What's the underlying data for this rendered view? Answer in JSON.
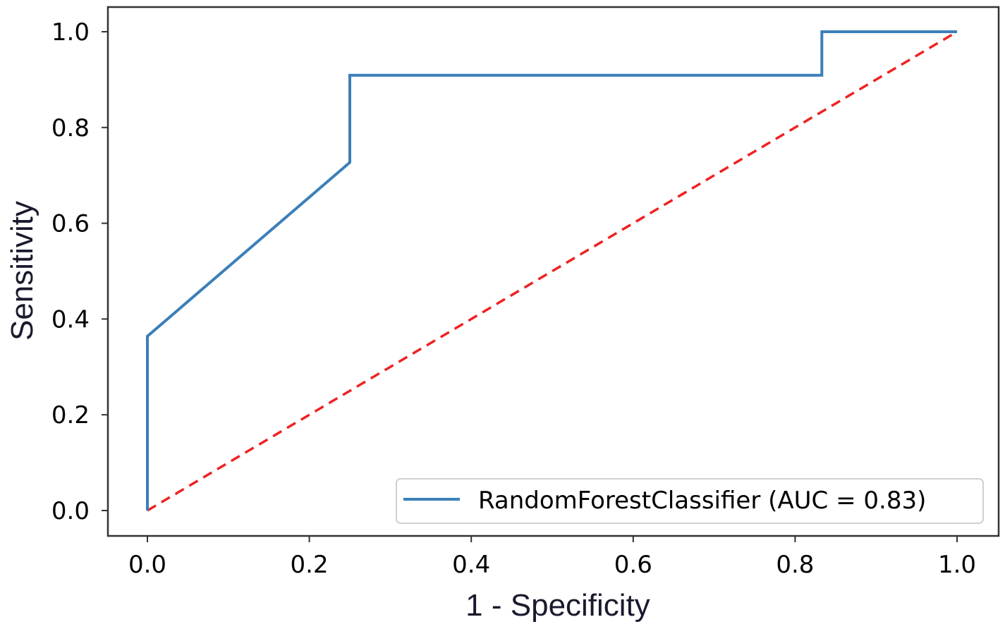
{
  "chart_data": {
    "type": "line",
    "xlabel": "1 - Specificity",
    "ylabel": "Sensitivity",
    "xlim": [
      -0.05,
      1.05
    ],
    "ylim": [
      -0.05,
      1.05
    ],
    "xticks": [
      0.0,
      0.2,
      0.4,
      0.6,
      0.8,
      1.0
    ],
    "yticks": [
      0.0,
      0.2,
      0.4,
      0.6,
      0.8,
      1.0
    ],
    "x_tick_labels": [
      "0.0",
      "0.2",
      "0.4",
      "0.6",
      "0.8",
      "1.0"
    ],
    "y_tick_labels": [
      "0.0",
      "0.2",
      "0.4",
      "0.6",
      "0.8",
      "1.0"
    ],
    "grid": false,
    "legend_position": "lower-right",
    "series": [
      {
        "name": "RandomForestClassifier (AUC = 0.83)",
        "color": "#3b7fb9",
        "style": "solid",
        "x": [
          0.0,
          0.0,
          0.25,
          0.25,
          0.833,
          0.833,
          1.0
        ],
        "y": [
          0.0,
          0.364,
          0.727,
          0.909,
          0.909,
          1.0,
          1.0
        ]
      }
    ],
    "reference_line": {
      "color": "#ee2222",
      "style": "dashed",
      "x": [
        0.0,
        1.0
      ],
      "y": [
        0.0,
        1.0
      ]
    }
  }
}
